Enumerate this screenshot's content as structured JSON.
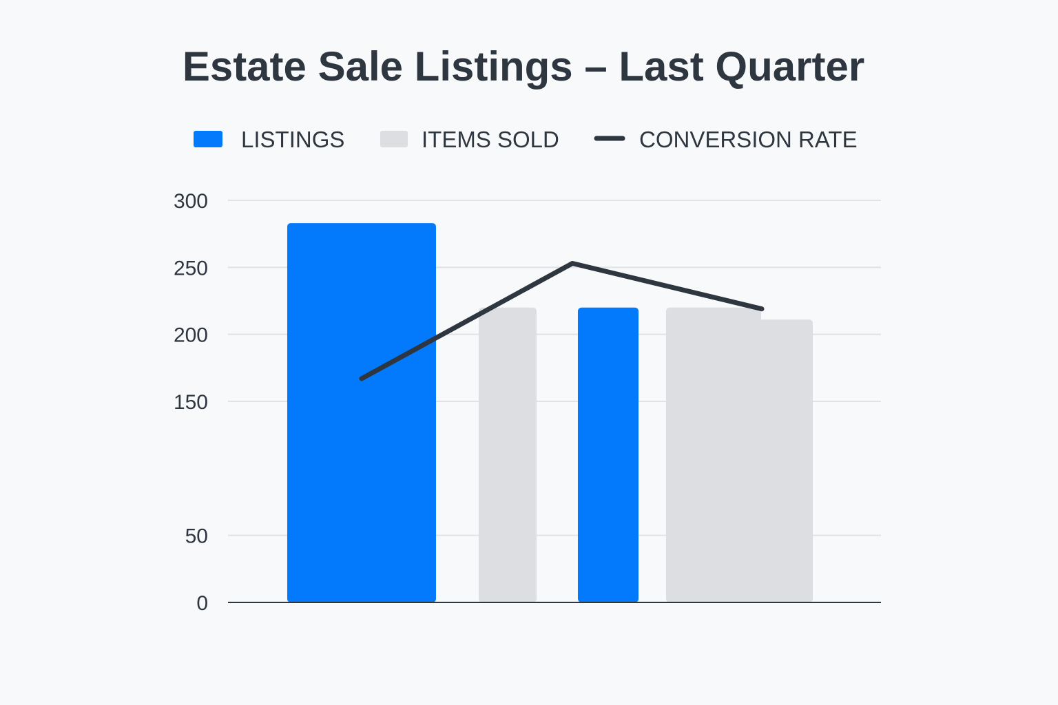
{
  "chart_data": {
    "type": "bar",
    "title": "Estate Sale Listings – Last Quarter",
    "xlabel": "",
    "ylabel": "",
    "ylim": [
      0,
      300
    ],
    "grid": true,
    "legend_position": "top",
    "y_ticks": [
      {
        "value": 0,
        "label": "0"
      },
      {
        "value": 50,
        "label": "50"
      },
      {
        "value": 150,
        "label": "150"
      },
      {
        "value": 200,
        "label": "200"
      },
      {
        "value": 250,
        "label": "250"
      },
      {
        "value": 300,
        "label": "300"
      }
    ],
    "legend": [
      {
        "name": "LISTINGS",
        "color": "#0379fb",
        "marker": "bar"
      },
      {
        "name": "ITEMS SOLD",
        "color": "#dcdee2",
        "marker": "bar"
      },
      {
        "name": "CONVERSION RATE",
        "color": "#2e3640",
        "marker": "line"
      }
    ],
    "bars": [
      {
        "series": "LISTINGS",
        "value": 283,
        "color": "#0379fb"
      },
      {
        "series": "ITEMS SOLD",
        "value": 220,
        "color": "#dcdee2"
      },
      {
        "series": "LISTINGS",
        "value": 220,
        "color": "#0379fb"
      },
      {
        "series": "ITEMS SOLD",
        "value": 220,
        "color": "#dcdee2"
      },
      {
        "series": "ITEMS SOLD",
        "value": 211,
        "color": "#dcdee2"
      }
    ],
    "series": [
      {
        "name": "CONVERSION RATE",
        "type": "line",
        "color": "#2e3640",
        "values": [
          167,
          253,
          219
        ]
      }
    ]
  }
}
